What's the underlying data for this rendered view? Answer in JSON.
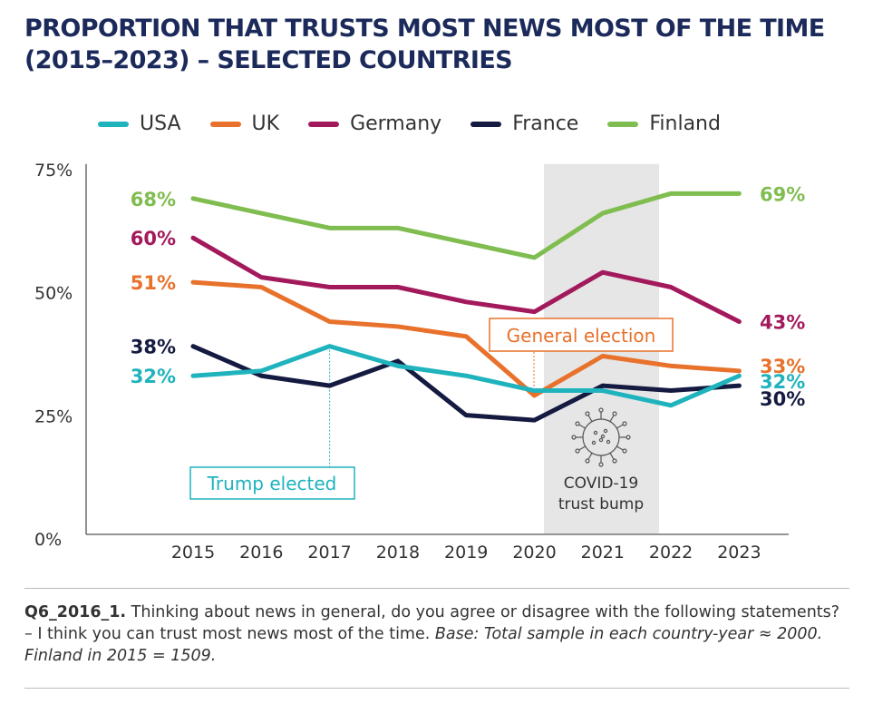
{
  "title": "PROPORTION THAT TRUSTS MOST NEWS MOST OF THE TIME (2015–2023) – SELECTED COUNTRIES",
  "chart_data": {
    "type": "line",
    "title": "PROPORTION THAT TRUSTS MOST NEWS MOST OF THE TIME (2015–2023) – SELECTED COUNTRIES",
    "x": [
      "2015",
      "2016",
      "2017",
      "2018",
      "2019",
      "2020",
      "2021",
      "2022",
      "2023"
    ],
    "ylim": [
      0,
      75
    ],
    "yticks": [
      "0%",
      "25%",
      "50%",
      "75%"
    ],
    "legend_position": "top",
    "series": [
      {
        "name": "USA",
        "color": "#1fb3bd",
        "values": [
          32,
          33,
          38,
          34,
          32,
          29,
          29,
          26,
          32
        ],
        "start_label": "32%",
        "end_label": "32%"
      },
      {
        "name": "UK",
        "color": "#e8712b",
        "values": [
          51,
          50,
          43,
          42,
          40,
          28,
          36,
          34,
          33
        ],
        "start_label": "51%",
        "end_label": "33%"
      },
      {
        "name": "Germany",
        "color": "#a31a5c",
        "values": [
          60,
          52,
          50,
          50,
          47,
          45,
          53,
          50,
          43
        ],
        "start_label": "60%",
        "end_label": "43%"
      },
      {
        "name": "France",
        "color": "#141a40",
        "values": [
          38,
          32,
          30,
          35,
          24,
          23,
          30,
          29,
          30
        ],
        "start_label": "38%",
        "end_label": "30%"
      },
      {
        "name": "Finland",
        "color": "#80bd51",
        "values": [
          68,
          65,
          62,
          62,
          59,
          56,
          65,
          69,
          69
        ],
        "start_label": "68%",
        "end_label": "69%"
      }
    ],
    "annotations": {
      "trump": "Trump elected",
      "election": "General election",
      "covid_line1": "COVID-19",
      "covid_line2": "trust bump"
    }
  },
  "note": {
    "q": "Q6_2016_1.",
    "text": " Thinking about news in general, do you agree or disagree with the following statements? – I think you can trust most news most of the time. ",
    "base": "Base: Total sample in each country-year ≈ 2000. Finland in 2015 = 1509."
  }
}
